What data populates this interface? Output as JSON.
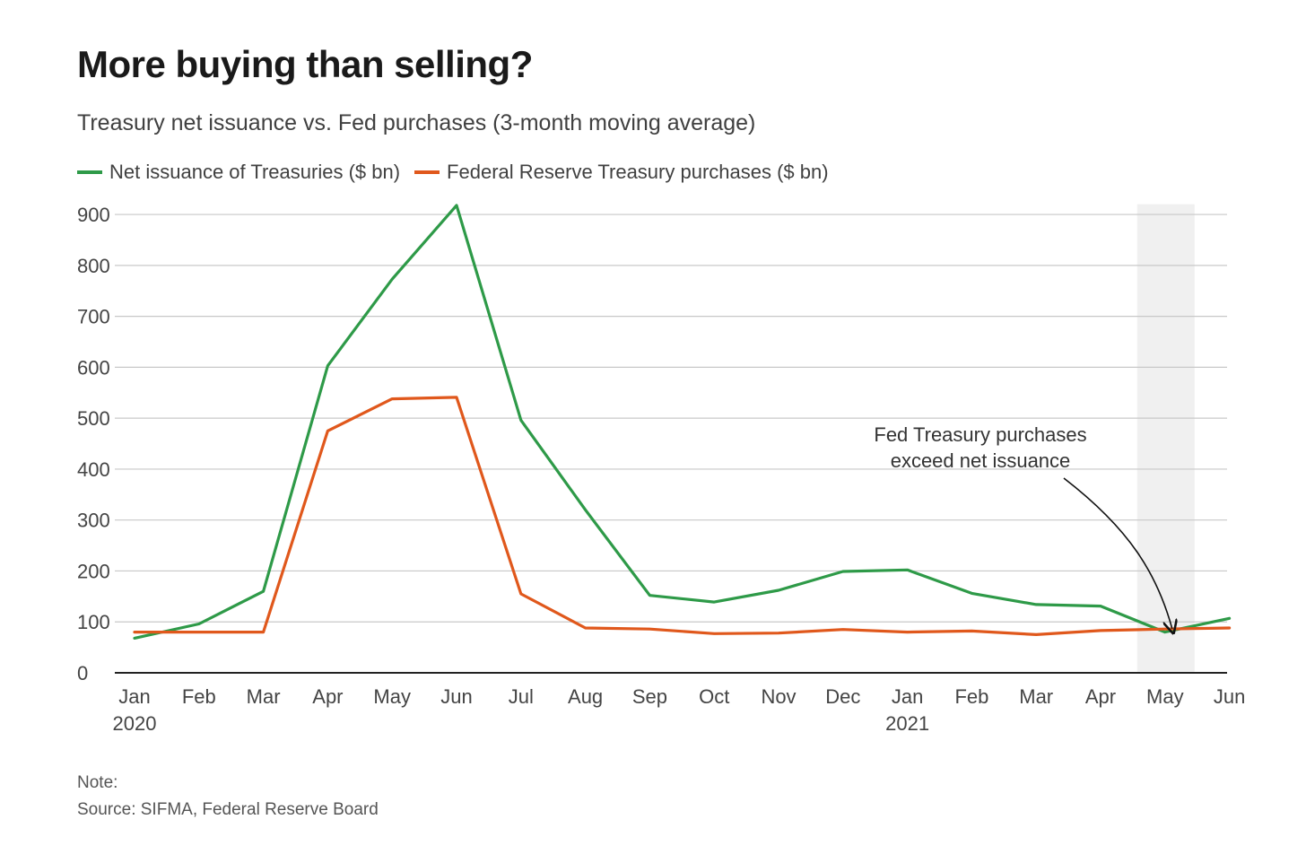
{
  "header": {
    "title": "More buying than selling?",
    "subtitle": "Treasury net issuance vs. Fed purchases (3-month moving average)"
  },
  "footer": {
    "note": "Note:",
    "source": "Source: SIFMA, Federal Reserve Board"
  },
  "chart_data": {
    "type": "line",
    "title": "More buying than selling?",
    "subtitle": "Treasury net issuance vs. Fed purchases (3-month moving average)",
    "categories": [
      "Jan",
      "Feb",
      "Mar",
      "Apr",
      "May",
      "Jun",
      "Jul",
      "Aug",
      "Sep",
      "Oct",
      "Nov",
      "Dec",
      "Jan",
      "Feb",
      "Mar",
      "Apr",
      "May",
      "Jun"
    ],
    "year_labels": [
      {
        "index": 0,
        "label": "2020"
      },
      {
        "index": 12,
        "label": "2021"
      }
    ],
    "ylim": [
      0,
      920
    ],
    "yticks": [
      0,
      100,
      200,
      300,
      400,
      500,
      600,
      700,
      800,
      900
    ],
    "grid": true,
    "legend_position": "top-left",
    "series": [
      {
        "name": "Net issuance of Treasuries ($ bn)",
        "color": "#2e9a48",
        "values": [
          68,
          96,
          160,
          603,
          773,
          918,
          496,
          320,
          152,
          139,
          162,
          199,
          202,
          156,
          134,
          131,
          80,
          107
        ]
      },
      {
        "name": "Federal Reserve Treasury purchases ($ bn)",
        "color": "#e0581c",
        "values": [
          80,
          80,
          80,
          475,
          538,
          541,
          155,
          88,
          86,
          77,
          78,
          85,
          80,
          82,
          75,
          83,
          86,
          88
        ]
      }
    ],
    "highlight_band": {
      "category_index": 16
    },
    "annotation": {
      "lines": [
        "Fed  Treasury purchases",
        "exceed net issuance"
      ],
      "target_index": 16,
      "target_value": 83
    }
  }
}
